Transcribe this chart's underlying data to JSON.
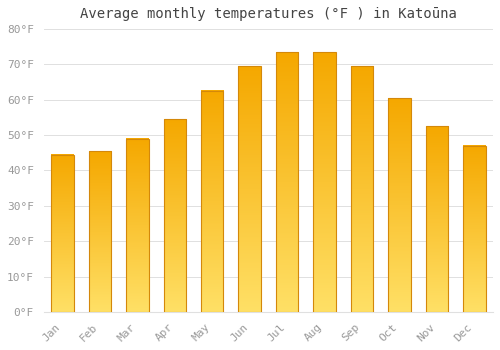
{
  "title": "Average monthly temperatures (°F ) in Katoūna",
  "months": [
    "Jan",
    "Feb",
    "Mar",
    "Apr",
    "May",
    "Jun",
    "Jul",
    "Aug",
    "Sep",
    "Oct",
    "Nov",
    "Dec"
  ],
  "values": [
    44.5,
    45.5,
    49.0,
    54.5,
    62.5,
    69.5,
    73.5,
    73.5,
    69.5,
    60.5,
    52.5,
    47.0
  ],
  "ylim": [
    0,
    80
  ],
  "yticks": [
    0,
    10,
    20,
    30,
    40,
    50,
    60,
    70,
    80
  ],
  "ytick_labels": [
    "0°F",
    "10°F",
    "20°F",
    "30°F",
    "40°F",
    "50°F",
    "60°F",
    "70°F",
    "80°F"
  ],
  "bar_color_bottom": "#FFE066",
  "bar_color_top": "#F5A800",
  "bar_edge_color": "#D4880A",
  "background_color": "#FFFFFF",
  "grid_color": "#E0E0E0",
  "title_fontsize": 10,
  "tick_fontsize": 8,
  "tick_color": "#999999",
  "title_color": "#444444",
  "bar_width": 0.6
}
